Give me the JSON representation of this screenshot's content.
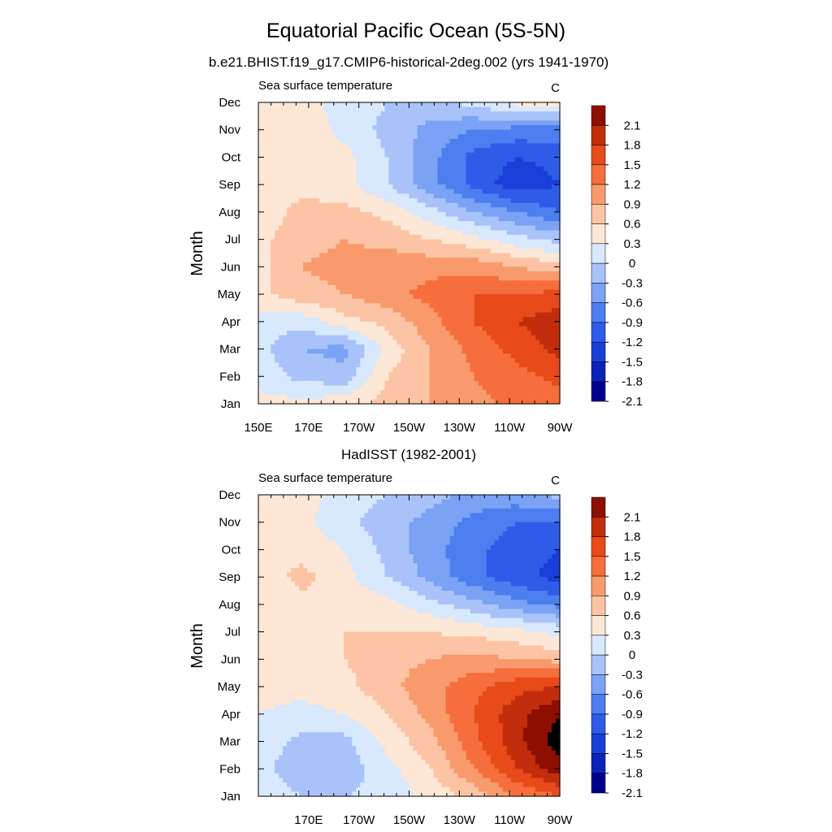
{
  "title": "Equatorial Pacific Ocean (5S-5N)",
  "colors": [
    "#00008f",
    "#0d23b8",
    "#1a3fd8",
    "#2e5be8",
    "#4c7ef0",
    "#7aa2f5",
    "#a9c3fa",
    "#d8e8fd",
    "#fde7d6",
    "#fcc4a4",
    "#f99a6c",
    "#f56e3c",
    "#e84a1a",
    "#c22d0c",
    "#8e0f00"
  ],
  "chart_data": [
    {
      "type": "heatmap",
      "title": "b.e21.BHIST.f19_g17.CMIP6-historical-2deg.002 (yrs 1941-1970)",
      "left_string": "Sea surface temperature",
      "right_string": "C",
      "xlabel": "",
      "ylabel": "Month",
      "x_ticks": [
        "150E",
        "170E",
        "170W",
        "150W",
        "130W",
        "110W",
        "90W"
      ],
      "y_ticks": [
        "Jan",
        "Feb",
        "Mar",
        "Apr",
        "May",
        "Jun",
        "Jul",
        "Aug",
        "Sep",
        "Oct",
        "Nov",
        "Dec"
      ],
      "xlim_deg_east": [
        150,
        270
      ],
      "levels": [
        -2.1,
        -1.8,
        -1.5,
        -1.2,
        -0.9,
        -0.6,
        -0.3,
        0,
        0.3,
        0.6,
        0.9,
        1.2,
        1.5,
        1.8,
        2.1
      ],
      "colorbar_labels": [
        "2.1",
        "1.8",
        "1.5",
        "1.2",
        "0.9",
        "0.6",
        "0.3",
        "0",
        "-0.3",
        "-0.6",
        "-0.9",
        "-1.2",
        "-1.5",
        "-1.8",
        "-2.1"
      ],
      "z": [
        [
          0.1,
          0.1,
          0.2,
          0.4,
          0.6,
          0.8,
          1.0,
          1.0
        ],
        [
          -0.1,
          -0.4,
          -0.5,
          0.3,
          0.6,
          0.9,
          1.1,
          1.3
        ],
        [
          -0.2,
          -0.6,
          -0.7,
          0.1,
          0.6,
          1.0,
          1.3,
          1.6
        ],
        [
          -0.1,
          -0.2,
          0.2,
          0.4,
          0.8,
          1.2,
          1.5,
          1.7
        ],
        [
          0.2,
          0.5,
          0.6,
          0.8,
          1.0,
          1.2,
          1.2,
          1.3
        ],
        [
          0.2,
          0.6,
          0.7,
          0.8,
          0.8,
          0.8,
          0.6,
          0.4
        ],
        [
          0.2,
          0.5,
          0.6,
          0.5,
          0.3,
          0.1,
          -0.2,
          -0.4
        ],
        [
          0.1,
          0.4,
          0.4,
          0.2,
          -0.2,
          -0.6,
          -0.9,
          -1.2
        ],
        [
          0.1,
          0.2,
          0.1,
          -0.3,
          -0.8,
          -1.3,
          -1.7,
          -1.5
        ],
        [
          0.1,
          0.2,
          0.1,
          -0.3,
          -0.8,
          -1.3,
          -1.5,
          -1.4
        ],
        [
          0.1,
          0.2,
          -0.1,
          -0.4,
          -0.7,
          -0.9,
          -1.0,
          -1.0
        ],
        [
          0.2,
          0.1,
          -0.1,
          -0.3,
          -0.4,
          -0.2,
          0.1,
          0.1
        ]
      ]
    },
    {
      "type": "heatmap",
      "title": "HadISST (1982-2001)",
      "left_string": "Sea surface temperature",
      "right_string": "C",
      "xlabel": "",
      "ylabel": "Month",
      "x_ticks": [
        "170E",
        "170W",
        "150W",
        "130W",
        "110W",
        "90W"
      ],
      "y_ticks": [
        "Jan",
        "Feb",
        "Mar",
        "Apr",
        "May",
        "Jun",
        "Jul",
        "Aug",
        "Sep",
        "Oct",
        "Nov",
        "Dec"
      ],
      "xlim_deg_east": [
        150,
        270
      ],
      "levels": [
        -2.1,
        -1.8,
        -1.5,
        -1.2,
        -0.9,
        -0.6,
        -0.3,
        0,
        0.3,
        0.6,
        0.9,
        1.2,
        1.5,
        1.8,
        2.1
      ],
      "colorbar_labels": [
        "2.1",
        "1.8",
        "1.5",
        "1.2",
        "0.9",
        "0.6",
        "0.3",
        "0",
        "-0.3",
        "-0.6",
        "-0.9",
        "-1.2",
        "-1.5",
        "-1.8",
        "-2.1"
      ],
      "z": [
        [
          -0.1,
          -0.3,
          -0.3,
          -0.2,
          0.1,
          0.4,
          0.9,
          1.2
        ],
        [
          -0.2,
          -0.5,
          -0.5,
          -0.1,
          0.3,
          0.9,
          1.5,
          2.0
        ],
        [
          -0.1,
          -0.4,
          -0.4,
          0.1,
          0.5,
          1.1,
          1.7,
          2.3
        ],
        [
          0.0,
          -0.1,
          0.0,
          0.3,
          0.7,
          1.2,
          1.7,
          2.1
        ],
        [
          0.1,
          0.1,
          0.2,
          0.5,
          0.8,
          1.1,
          1.4,
          1.5
        ],
        [
          0.1,
          0.2,
          0.3,
          0.5,
          0.6,
          0.7,
          0.6,
          0.5
        ],
        [
          0.1,
          0.2,
          0.3,
          0.3,
          0.3,
          0.2,
          0.1,
          -0.1
        ],
        [
          0.0,
          0.2,
          0.2,
          0.1,
          -0.2,
          -0.5,
          -0.8,
          -1.0
        ],
        [
          0.1,
          0.4,
          0.1,
          -0.3,
          -0.7,
          -1.1,
          -1.4,
          -1.6
        ],
        [
          0.1,
          0.2,
          0.0,
          -0.4,
          -0.8,
          -1.1,
          -1.4,
          -1.5
        ],
        [
          0.2,
          0.1,
          -0.2,
          -0.5,
          -0.7,
          -1.0,
          -1.2,
          -1.2
        ],
        [
          0.2,
          0.1,
          -0.1,
          -0.3,
          -0.5,
          -0.7,
          -0.7,
          -0.5
        ]
      ]
    }
  ]
}
